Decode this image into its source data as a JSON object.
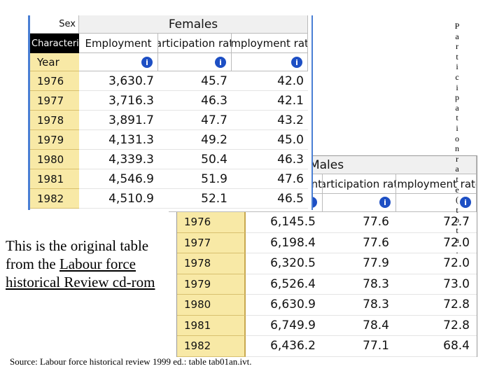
{
  "females": {
    "sex_label": "Sex",
    "group": "Females",
    "characteristics_label": "Characteristics",
    "year_label": "Year",
    "columns": [
      "Employment",
      "Participation rate",
      "Employment rate"
    ],
    "rows": [
      [
        "1976",
        "3,630.7",
        "45.7",
        "42.0"
      ],
      [
        "1977",
        "3,716.3",
        "46.3",
        "42.1"
      ],
      [
        "1978",
        "3,891.7",
        "47.7",
        "43.2"
      ],
      [
        "1979",
        "4,131.3",
        "49.2",
        "45.0"
      ],
      [
        "1980",
        "4,339.3",
        "50.4",
        "46.3"
      ],
      [
        "1981",
        "4,546.9",
        "51.9",
        "47.6"
      ],
      [
        "1982",
        "4,510.9",
        "52.1",
        "46.5"
      ]
    ]
  },
  "males": {
    "group": "Males",
    "columns": [
      "nt",
      "Participation rate",
      "Employment rate"
    ],
    "rows": [
      [
        "1976",
        "6,145.5",
        "77.6",
        "72.7"
      ],
      [
        "1977",
        "6,198.4",
        "77.6",
        "72.0"
      ],
      [
        "1978",
        "6,320.5",
        "77.9",
        "72.0"
      ],
      [
        "1979",
        "6,526.4",
        "78.3",
        "73.0"
      ],
      [
        "1980",
        "6,630.9",
        "78.3",
        "72.8"
      ],
      [
        "1981",
        "6,749.9",
        "78.4",
        "72.8"
      ],
      [
        "1982",
        "6,436.2",
        "77.1",
        "68.4"
      ]
    ]
  },
  "caption": {
    "text": "This is the original table from the",
    "link": "Labour force historical Review cd-rom"
  },
  "source": "Source: Labour force historical review 1999 ed.: table tab01an.ivt.",
  "vertical_text": "Participation rate ( tota."
}
